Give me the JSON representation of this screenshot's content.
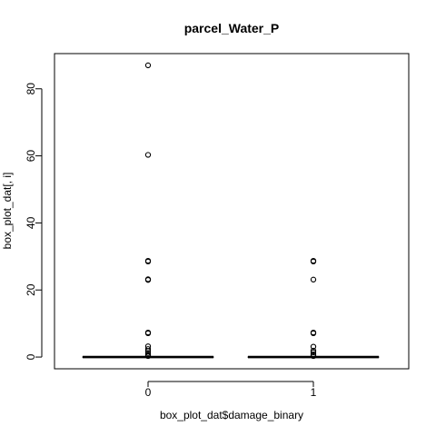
{
  "chart_data": {
    "type": "boxplot",
    "title": "parcel_Water_P",
    "xlabel": "box_plot_dat$damage_binary",
    "ylabel": "box_plot_dat[, i]",
    "categories": [
      "0",
      "1"
    ],
    "ylim": [
      -3.5,
      90.5
    ],
    "yticks": [
      0,
      20,
      40,
      60,
      80
    ],
    "grid": false,
    "boxes": [
      {
        "category": "0",
        "stats": {
          "min": 0,
          "q1": 0,
          "median": 0,
          "q3": 0,
          "max": 0
        },
        "outliers": [
          87,
          60.3,
          28.7,
          28.5,
          23.2,
          23.0,
          7.3,
          7.1,
          3.2,
          2.4,
          1.8,
          1.2,
          0.7,
          0.3
        ]
      },
      {
        "category": "1",
        "stats": {
          "min": 0,
          "q1": 0,
          "median": 0,
          "q3": 0,
          "max": 0
        },
        "outliers": [
          28.7,
          28.5,
          23.1,
          7.3,
          7.1,
          3.1,
          1.9,
          1.4,
          0.8,
          0.3
        ]
      }
    ]
  }
}
